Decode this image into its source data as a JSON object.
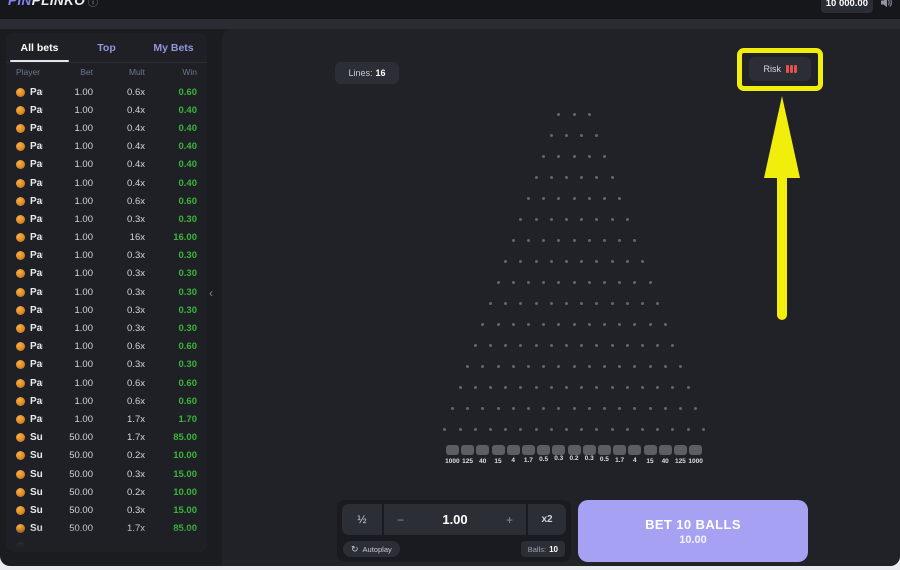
{
  "topbar": {
    "logo_pin": "PIN",
    "logo_rest": "PLINKO",
    "info_icon": "ⓘ",
    "balance": "10 000.00"
  },
  "sidebar": {
    "tabs": [
      {
        "label": "All bets",
        "active": true
      },
      {
        "label": "Top",
        "active": false
      },
      {
        "label": "My Bets",
        "active": false
      }
    ],
    "columns": [
      "Player",
      "Bet",
      "Mult",
      "Win"
    ],
    "collapse_icon": "‹",
    "rows": [
      {
        "player": "Paulette",
        "bet": "1.00",
        "mult": "0.6x",
        "win": "0.60"
      },
      {
        "player": "Paulette",
        "bet": "1.00",
        "mult": "0.4x",
        "win": "0.40"
      },
      {
        "player": "Paulette",
        "bet": "1.00",
        "mult": "0.4x",
        "win": "0.40"
      },
      {
        "player": "Paulette",
        "bet": "1.00",
        "mult": "0.4x",
        "win": "0.40"
      },
      {
        "player": "Paulette",
        "bet": "1.00",
        "mult": "0.4x",
        "win": "0.40"
      },
      {
        "player": "Paulette",
        "bet": "1.00",
        "mult": "0.4x",
        "win": "0.40"
      },
      {
        "player": "Paulette",
        "bet": "1.00",
        "mult": "0.6x",
        "win": "0.60"
      },
      {
        "player": "Paulette",
        "bet": "1.00",
        "mult": "0.3x",
        "win": "0.30"
      },
      {
        "player": "Paulette",
        "bet": "1.00",
        "mult": "16x",
        "win": "16.00"
      },
      {
        "player": "Paulette",
        "bet": "1.00",
        "mult": "0.3x",
        "win": "0.30"
      },
      {
        "player": "Paulette",
        "bet": "1.00",
        "mult": "0.3x",
        "win": "0.30"
      },
      {
        "player": "Paulette",
        "bet": "1.00",
        "mult": "0.3x",
        "win": "0.30"
      },
      {
        "player": "Paulette",
        "bet": "1.00",
        "mult": "0.3x",
        "win": "0.30"
      },
      {
        "player": "Paulette",
        "bet": "1.00",
        "mult": "0.3x",
        "win": "0.30"
      },
      {
        "player": "Paulette",
        "bet": "1.00",
        "mult": "0.6x",
        "win": "0.60"
      },
      {
        "player": "Paulette",
        "bet": "1.00",
        "mult": "0.3x",
        "win": "0.30"
      },
      {
        "player": "Paulette",
        "bet": "1.00",
        "mult": "0.6x",
        "win": "0.60"
      },
      {
        "player": "Paulette",
        "bet": "1.00",
        "mult": "0.6x",
        "win": "0.60"
      },
      {
        "player": "Paulette",
        "bet": "1.00",
        "mult": "1.7x",
        "win": "1.70"
      },
      {
        "player": "Suzanne",
        "bet": "50.00",
        "mult": "1.7x",
        "win": "85.00"
      },
      {
        "player": "Suzanne",
        "bet": "50.00",
        "mult": "0.2x",
        "win": "10.00"
      },
      {
        "player": "Suzanne",
        "bet": "50.00",
        "mult": "0.3x",
        "win": "15.00"
      },
      {
        "player": "Suzanne",
        "bet": "50.00",
        "mult": "0.2x",
        "win": "10.00"
      },
      {
        "player": "Suzanne",
        "bet": "50.00",
        "mult": "0.3x",
        "win": "15.00"
      },
      {
        "player": "Suzanne",
        "bet": "50.00",
        "mult": "1.7x",
        "win": "85.00"
      }
    ],
    "has_partial_row": true
  },
  "board": {
    "lines_label": "Lines:",
    "lines_value": "16",
    "lines": 16,
    "risk_label": "Risk",
    "risk_bars": 3,
    "slots": [
      "1000",
      "125",
      "40",
      "15",
      "4",
      "1.7",
      "0.5",
      "0.3",
      "0.2",
      "0.3",
      "0.5",
      "1.7",
      "4",
      "15",
      "40",
      "125",
      "1000"
    ]
  },
  "controls": {
    "half": "½",
    "minus": "−",
    "bet_value": "1.00",
    "plus": "+",
    "double": "x2",
    "autoplay_label": "Autoplay",
    "balls_label": "Balls:",
    "balls_value": "10",
    "bet_line1": "BET 10 BALLS",
    "bet_line2": "10.00"
  },
  "colors": {
    "accent": "#a6a1f2",
    "win_green": "#3cb43c",
    "annotation_yellow": "#f2ee0c",
    "risk_red": "#e0524a",
    "tab_purple": "#9196de"
  }
}
